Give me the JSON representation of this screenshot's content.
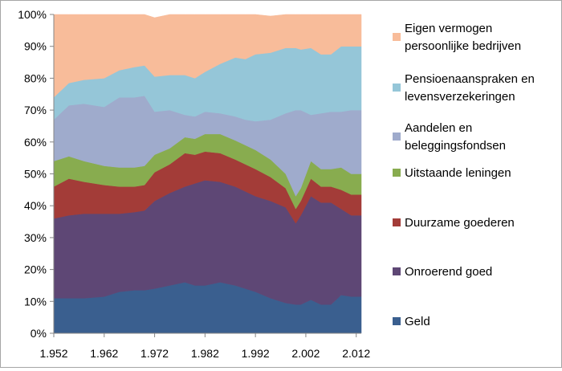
{
  "chart_data": {
    "type": "area",
    "stacked": true,
    "percent": true,
    "grid": false,
    "legend_position": "right",
    "xlim": [
      1952,
      2013
    ],
    "ylim": [
      0,
      100
    ],
    "x_ticks": [
      1952,
      1962,
      1972,
      1982,
      1992,
      2002,
      2012
    ],
    "x_tick_labels": [
      "1.952",
      "1.962",
      "1.972",
      "1.982",
      "1.992",
      "2.002",
      "2.012"
    ],
    "y_ticks": [
      0,
      10,
      20,
      30,
      40,
      50,
      60,
      70,
      80,
      90,
      100
    ],
    "y_tick_labels": [
      "0%",
      "10%",
      "20%",
      "30%",
      "40%",
      "50%",
      "60%",
      "70%",
      "80%",
      "90%",
      "100%"
    ],
    "x": [
      1952,
      1955,
      1958,
      1962,
      1965,
      1968,
      1970,
      1972,
      1975,
      1978,
      1980,
      1982,
      1985,
      1988,
      1990,
      1992,
      1995,
      1998,
      2000,
      2001,
      2003,
      2005,
      2007,
      2009,
      2011,
      2013
    ],
    "series": [
      {
        "name": "Geld",
        "color": "#3a5f8f",
        "values": [
          11,
          11,
          11,
          11.5,
          13,
          13.5,
          13.5,
          14,
          15,
          16,
          15,
          15,
          16,
          15,
          14,
          13,
          11,
          9.5,
          9,
          9,
          10.5,
          9,
          9,
          12,
          11.5,
          11.5
        ]
      },
      {
        "name": "Onroerend goed",
        "color": "#5e4775",
        "values": [
          25,
          26,
          26.5,
          26,
          24.5,
          24.5,
          25,
          27.5,
          29,
          30,
          32,
          33,
          31.5,
          31,
          30.5,
          30,
          30.5,
          30,
          25.5,
          28,
          32.5,
          32,
          32,
          27,
          25.5,
          25.5
        ]
      },
      {
        "name": "Duurzame goederen",
        "color": "#a33c38",
        "values": [
          10,
          11.5,
          10,
          9,
          8.5,
          8,
          8,
          9,
          9,
          10.5,
          9,
          9,
          9,
          8.5,
          8.5,
          8.5,
          7.5,
          6,
          4.5,
          4.5,
          5.5,
          5,
          5,
          6,
          6.5,
          6.5
        ]
      },
      {
        "name": "Uitstaande leningen",
        "color": "#88ac4f",
        "values": [
          8,
          7,
          6.5,
          6,
          6,
          6,
          6,
          5.5,
          5,
          5,
          5,
          5.5,
          6,
          6,
          6,
          6,
          5.5,
          4.5,
          4,
          4,
          5.5,
          5.5,
          5.5,
          7,
          6.5,
          6.5
        ]
      },
      {
        "name": "Aandelen en beleggingsfondsen",
        "color": "#9fabcc",
        "values": [
          13,
          16,
          18,
          18.5,
          22,
          22,
          22,
          13.5,
          12,
          7,
          7,
          7,
          6.5,
          7.5,
          8,
          9,
          12.5,
          19,
          27,
          24.5,
          14.5,
          17.5,
          18,
          17.5,
          20,
          20
        ]
      },
      {
        "name": "Pensioenaanspraken en levensverzekeringen",
        "color": "#95c6d8",
        "values": [
          7,
          7,
          7.5,
          9,
          8.5,
          9.5,
          9.5,
          11,
          11,
          12.5,
          12,
          12.5,
          15.5,
          18.5,
          19,
          21,
          21,
          20.5,
          19.5,
          19,
          21,
          18.5,
          18,
          20.5,
          20,
          20
        ]
      },
      {
        "name": "Eigen vermogen persoonlijke bedrijven",
        "color": "#f8bc9a",
        "values": [
          26,
          21.5,
          20.5,
          20,
          17.5,
          16.5,
          16,
          18.5,
          19,
          19,
          20,
          18,
          15.5,
          13.5,
          14,
          12.5,
          11.5,
          10.5,
          10.5,
          11,
          10.5,
          12.5,
          12.5,
          10,
          10,
          10
        ]
      }
    ],
    "legend": [
      {
        "lines": [
          "Eigen vermogen",
          "persoonlijke bedrijven"
        ],
        "color": "#f8bc9a"
      },
      {
        "lines": [
          "Pensioenaanspraken en",
          "levensverzekeringen"
        ],
        "color": "#95c6d8"
      },
      {
        "lines": [
          "Aandelen en",
          "beleggingsfondsen"
        ],
        "color": "#9fabcc"
      },
      {
        "lines": [
          "Uitstaande leningen"
        ],
        "color": "#88ac4f"
      },
      {
        "lines": [
          "Duurzame goederen"
        ],
        "color": "#a33c38"
      },
      {
        "lines": [
          "Onroerend goed"
        ],
        "color": "#5e4775"
      },
      {
        "lines": [
          "Geld"
        ],
        "color": "#3a5f8f"
      }
    ]
  }
}
